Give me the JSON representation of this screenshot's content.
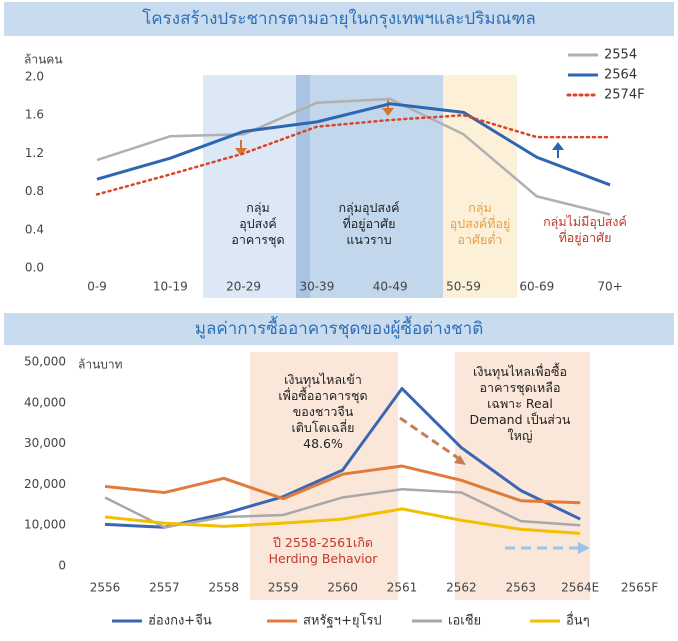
{
  "chart_data": [
    {
      "type": "line",
      "title": "โครงสร้างประชากรตามอายุในกรุงเทพฯและปริมณฑล",
      "y_label": "ล้านคน",
      "categories": [
        "0-9",
        "10-19",
        "20-29",
        "30-39",
        "40-49",
        "50-59",
        "60-69",
        "70+"
      ],
      "ylim": [
        0,
        2.0
      ],
      "yticks": [
        {
          "value": 0,
          "label": "0.0"
        },
        0.4,
        0.8,
        1.2,
        1.6,
        {
          "value": 2,
          "label": "2.0"
        }
      ],
      "legend": "top-right",
      "series": [
        {
          "name": "2554",
          "color": "#b0b0b0",
          "values": [
            1.13,
            1.38,
            1.4,
            1.73,
            1.77,
            1.4,
            0.75,
            0.56
          ]
        },
        {
          "name": "2564",
          "color": "#2e67b1",
          "values": [
            0.93,
            1.15,
            1.43,
            1.53,
            1.72,
            1.63,
            1.16,
            0.87
          ]
        },
        {
          "name": "2574F",
          "color": "#d9442a",
          "dash": "dotted",
          "values": [
            0.77,
            0.98,
            1.2,
            1.48,
            1.55,
            1.6,
            1.37,
            1.37
          ]
        }
      ],
      "annotations": [
        {
          "lines": [
            "กลุ่ม",
            "อุปสงค์",
            "อาคารชุด"
          ],
          "color": "#222222"
        },
        {
          "lines": [
            "กลุ่มอุปสงค์",
            "ที่อยู่อาศัย",
            "แนวราบ"
          ],
          "color": "#222222"
        },
        {
          "lines": [
            "กลุ่ม",
            "อุปสงค์ที่อยู่",
            "อาศัยต่ำ"
          ],
          "color": "#e8a040"
        },
        {
          "lines": [
            "กลุ่มไม่มีอุปสงค์",
            "ที่อยู่อาศัย"
          ],
          "color": "#c0392b"
        }
      ]
    },
    {
      "type": "line",
      "title": "มูลค่าการซื้ออาคารชุดของผู้ซื้อต่างชาติ",
      "y_label": "ล้านบาท",
      "categories": [
        "2556",
        "2557",
        "2558",
        "2559",
        "2560",
        "2561",
        "2562",
        "2563",
        "2564E",
        "2565F"
      ],
      "ylim": [
        0,
        50000
      ],
      "yticks": [
        0,
        {
          "value": 10000,
          "label": "10,000"
        },
        {
          "value": 20000,
          "label": "20,000"
        },
        {
          "value": 30000,
          "label": "30,000"
        },
        {
          "value": 40000,
          "label": "40,000"
        },
        {
          "value": 50000,
          "label": "50,000"
        }
      ],
      "legend": "bottom",
      "series": [
        {
          "name": "ฮ่องกง+จีน",
          "color": "#3a66b5",
          "values": [
            10200,
            9500,
            12800,
            17000,
            23500,
            43500,
            29000,
            18500,
            11500,
            null
          ]
        },
        {
          "name": "สหรัฐฯ+ยุโรป",
          "color": "#e07b39",
          "values": [
            19500,
            18000,
            21500,
            16500,
            22500,
            24500,
            21000,
            16000,
            15500,
            null
          ]
        },
        {
          "name": "เอเชีย",
          "color": "#a8a8a8",
          "values": [
            16800,
            9500,
            12000,
            12500,
            16800,
            18800,
            18000,
            11000,
            10000,
            null
          ]
        },
        {
          "name": "อื่นๆ",
          "color": "#f2c000",
          "values": [
            12000,
            10500,
            9700,
            10500,
            11500,
            14000,
            11200,
            9000,
            8000,
            null
          ]
        }
      ],
      "annotations": [
        {
          "lines": [
            "เงินทุนไหลเข้า",
            "เพื่อซื้ออาคารชุด",
            "ของชาวจีน",
            "เติบโตเฉลี่ย",
            "48.6%"
          ],
          "color": "#222222"
        },
        {
          "lines": [
            "เงินทุนไหลเพื่อซื้อ",
            "อาคารชุดเหลือ",
            "เฉพาะ Real",
            "Demand เป็นส่วน",
            "ใหญ่"
          ],
          "color": "#222222"
        },
        {
          "lines": [
            "ปี 2558-2561เกิด",
            "Herding Behavior"
          ],
          "color": "#c0392b"
        }
      ]
    }
  ]
}
